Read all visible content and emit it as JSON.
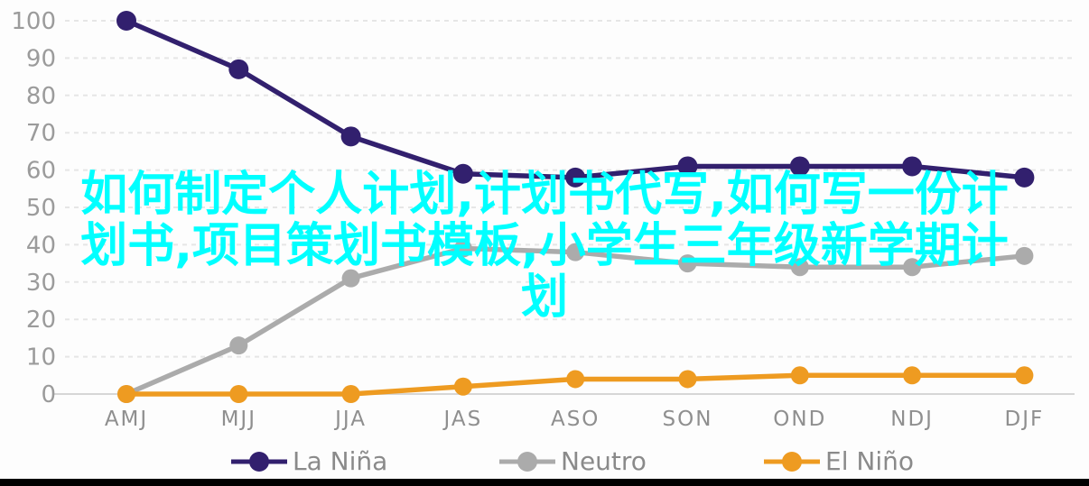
{
  "chart_data": {
    "type": "line",
    "categories": [
      "AMJ",
      "MJJ",
      "JJA",
      "JAS",
      "ASO",
      "SON",
      "OND",
      "NDJ",
      "DJF"
    ],
    "series": [
      {
        "name": "La Niña",
        "color": "#32206E",
        "values": [
          100,
          87,
          69,
          59,
          58,
          61,
          61,
          61,
          58
        ]
      },
      {
        "name": "Neutro",
        "color": "#ABABAB",
        "values": [
          0,
          13,
          31,
          39,
          38,
          35,
          34,
          34,
          37
        ]
      },
      {
        "name": "El Niño",
        "color": "#EE9B21",
        "values": [
          0,
          0,
          0,
          2,
          4,
          4,
          5,
          5,
          5
        ]
      }
    ],
    "title": "",
    "xlabel": "",
    "ylabel": "",
    "ylim": [
      0,
      100
    ],
    "ytick_step": 10,
    "yticks": [
      0,
      10,
      20,
      30,
      40,
      50,
      60,
      70,
      80,
      90,
      100
    ],
    "grid": "horizontal-dashed",
    "legend_position": "bottom"
  },
  "watermark": {
    "text": "如何制定个人计划,计划书代写,如何写一份计划书,项目策划书模板,小学生三年级新学期计划",
    "lines": [
      "如何制定个人计划,计划书代写,如何写一份计",
      "划书,项目策划书模板,小学生三年级新学期计",
      "划"
    ],
    "color": "#00FFFF"
  },
  "legend": {
    "items": [
      {
        "label": "La Niña",
        "color": "#32206E"
      },
      {
        "label": "Neutro",
        "color": "#ABABAB"
      },
      {
        "label": "El Niño",
        "color": "#EE9B21"
      }
    ]
  },
  "colors": {
    "background": "#fdfdfd",
    "gridline": "#e6e6e6",
    "zero_line": "#d6d6d6",
    "y_tick_label": "#9b9b9b",
    "x_tick_label": "#8f8f8f",
    "legend_text": "#8a8a8a",
    "bottom_bar": "#000000"
  }
}
